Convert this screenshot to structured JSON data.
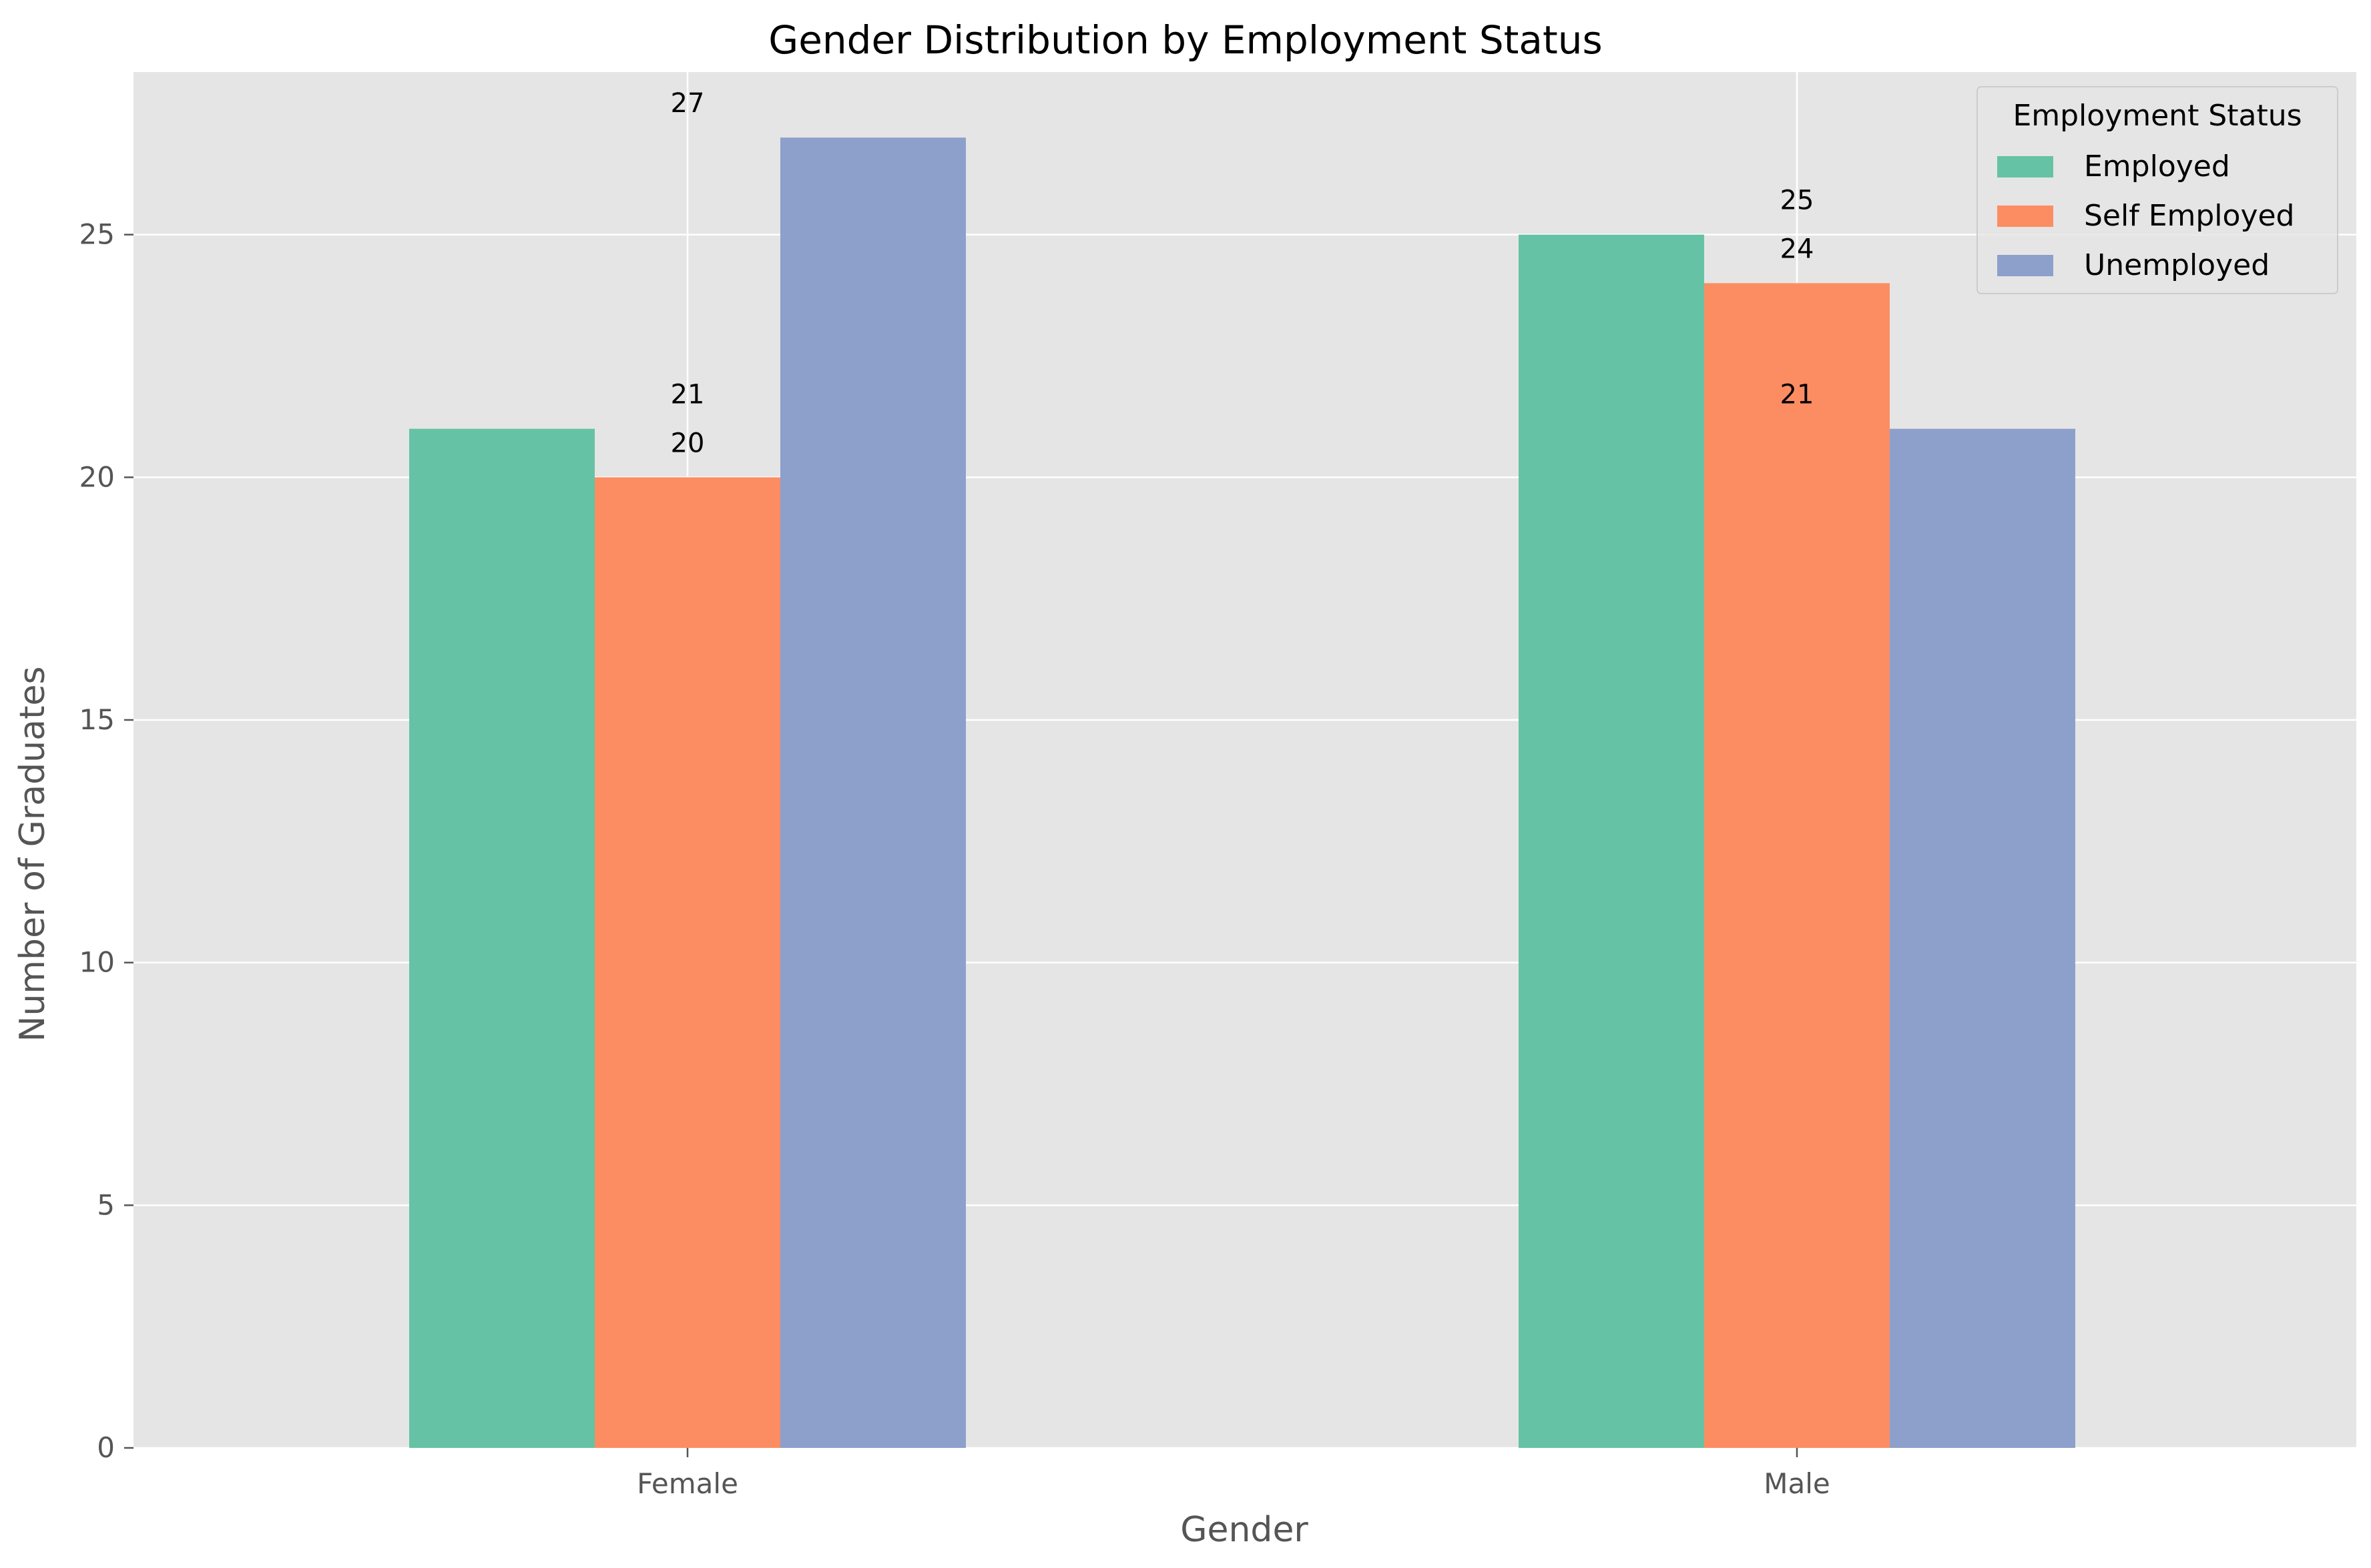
{
  "chart_data": {
    "type": "bar",
    "title": "Gender Distribution by Employment Status",
    "xlabel": "Gender",
    "ylabel": "Number of Graduates",
    "categories": [
      "Female",
      "Male"
    ],
    "series": [
      {
        "name": "Employed",
        "values": [
          21,
          25
        ],
        "color": "#66c2a5"
      },
      {
        "name": "Self Employed",
        "values": [
          20,
          24
        ],
        "color": "#fc8d62"
      },
      {
        "name": "Unemployed",
        "values": [
          27,
          21
        ],
        "color": "#8da0cb"
      }
    ],
    "ylim": [
      0,
      28.35
    ],
    "yticks": [
      0,
      5,
      10,
      15,
      20,
      25
    ],
    "grid": true,
    "legend": {
      "title": "Employment Status",
      "placement": "top-right"
    },
    "style": {
      "plot_background": "#e5e5e5",
      "grid_color": "#ffffff"
    }
  }
}
